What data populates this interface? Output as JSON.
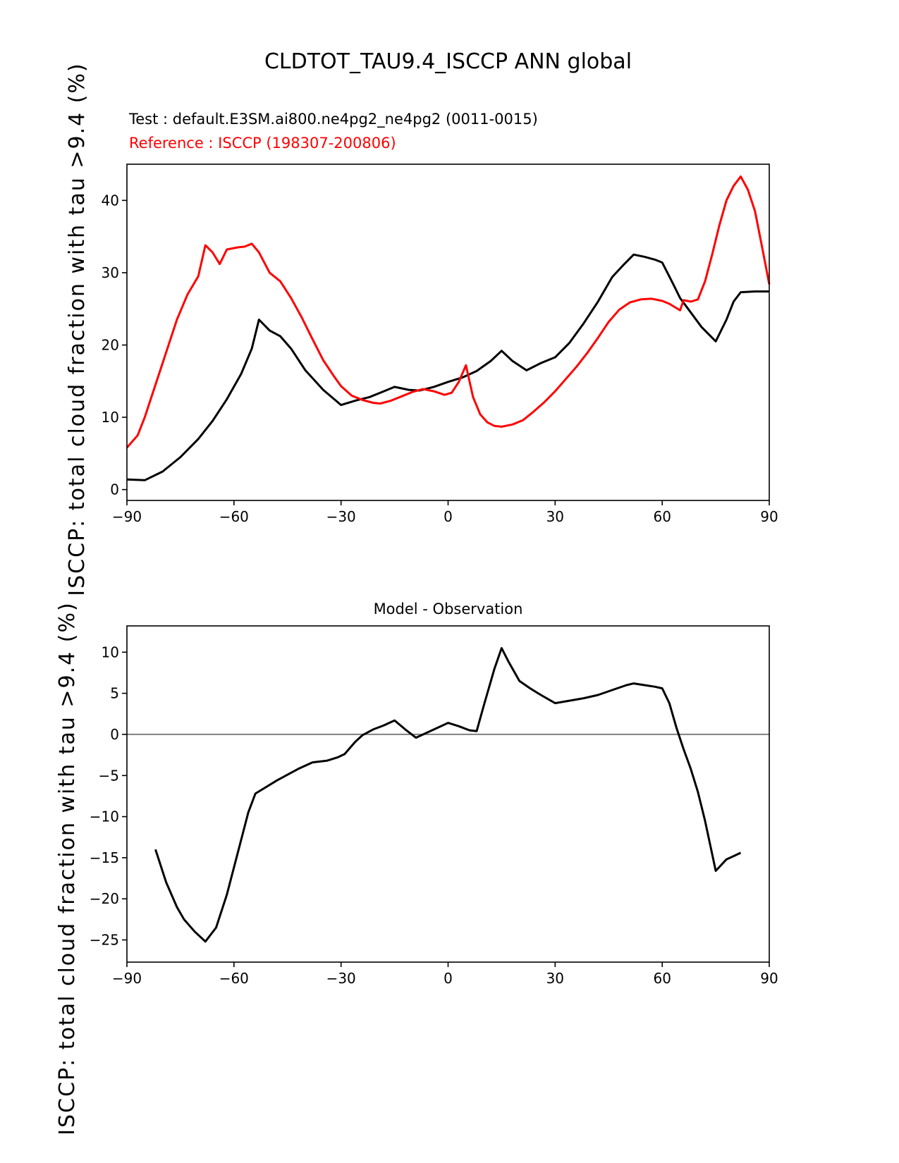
{
  "page": {
    "title": "CLDTOT_TAU9.4_ISCCP ANN global",
    "test_label": "Test : default.E3SM.ai800.ne4pg2_ne4pg2 (0011-0015)",
    "reference_label": "Reference : ISCCP (198307-200806)",
    "reference_color": "#ff0000",
    "test_color": "#000000",
    "ylabel": "ISCCP: total cloud fraction with tau >9.4 (%)",
    "diff_title": "Model - Observation"
  },
  "chart_data": [
    {
      "type": "line",
      "title": "CLDTOT_TAU9.4_ISCCP ANN global",
      "xlabel": "",
      "ylabel": "ISCCP: total cloud fraction with tau >9.4 (%)",
      "xlim": [
        -90,
        90
      ],
      "ylim": [
        -1.5,
        45
      ],
      "grid": false,
      "legend_position": "none",
      "xtick_values": [
        -90,
        -60,
        -30,
        0,
        30,
        60,
        90
      ],
      "xtick_labels": [
        "−90",
        "−60",
        "−30",
        "0",
        "30",
        "60",
        "90"
      ],
      "ytick_values": [
        0,
        10,
        20,
        30,
        40
      ],
      "ytick_labels": [
        "0",
        "10",
        "20",
        "30",
        "40"
      ],
      "zero_line": false,
      "series": [
        {
          "key": "test",
          "label": "Test : default.E3SM.ai800.ne4pg2_ne4pg2 (0011-0015)",
          "color": "#000000",
          "line_width": 3,
          "points": [
            [
              -90,
              1.4
            ],
            [
              -85,
              1.3
            ],
            [
              -80,
              2.5
            ],
            [
              -75,
              4.5
            ],
            [
              -70,
              7.0
            ],
            [
              -66,
              9.5
            ],
            [
              -62,
              12.5
            ],
            [
              -58,
              16.0
            ],
            [
              -55,
              19.5
            ],
            [
              -53,
              23.5
            ],
            [
              -50,
              22.0
            ],
            [
              -47,
              21.2
            ],
            [
              -44,
              19.5
            ],
            [
              -40,
              16.5
            ],
            [
              -35,
              13.8
            ],
            [
              -30,
              11.7
            ],
            [
              -26,
              12.3
            ],
            [
              -22,
              12.8
            ],
            [
              -18,
              13.6
            ],
            [
              -15,
              14.2
            ],
            [
              -11,
              13.8
            ],
            [
              -8,
              13.7
            ],
            [
              -4,
              14.2
            ],
            [
              0,
              14.9
            ],
            [
              4,
              15.5
            ],
            [
              8,
              16.4
            ],
            [
              12,
              17.8
            ],
            [
              15,
              19.2
            ],
            [
              18,
              17.8
            ],
            [
              22,
              16.5
            ],
            [
              26,
              17.5
            ],
            [
              30,
              18.3
            ],
            [
              34,
              20.3
            ],
            [
              38,
              23.0
            ],
            [
              42,
              26.0
            ],
            [
              46,
              29.4
            ],
            [
              49,
              31.0
            ],
            [
              52,
              32.5
            ],
            [
              55,
              32.2
            ],
            [
              58,
              31.8
            ],
            [
              60,
              31.4
            ],
            [
              63,
              28.5
            ],
            [
              65,
              26.5
            ],
            [
              68,
              24.5
            ],
            [
              71,
              22.5
            ],
            [
              75,
              20.5
            ],
            [
              78,
              23.5
            ],
            [
              80,
              26.0
            ],
            [
              82,
              27.3
            ],
            [
              86,
              27.4
            ],
            [
              90,
              27.4
            ]
          ]
        },
        {
          "key": "reference",
          "label": "Reference : ISCCP (198307-200806)",
          "color": "#ff0000",
          "line_width": 3,
          "points": [
            [
              -90,
              5.8
            ],
            [
              -87,
              7.5
            ],
            [
              -85,
              10.0
            ],
            [
              -82,
              14.5
            ],
            [
              -79,
              19.0
            ],
            [
              -76,
              23.5
            ],
            [
              -73,
              27.0
            ],
            [
              -70,
              29.5
            ],
            [
              -68,
              33.8
            ],
            [
              -66,
              32.8
            ],
            [
              -64,
              31.2
            ],
            [
              -62,
              33.2
            ],
            [
              -59,
              33.5
            ],
            [
              -57,
              33.6
            ],
            [
              -55,
              34.0
            ],
            [
              -53,
              32.8
            ],
            [
              -50,
              30.0
            ],
            [
              -47,
              28.8
            ],
            [
              -44,
              26.5
            ],
            [
              -41,
              23.8
            ],
            [
              -38,
              20.8
            ],
            [
              -35,
              17.9
            ],
            [
              -32,
              15.7
            ],
            [
              -30,
              14.3
            ],
            [
              -27,
              13.0
            ],
            [
              -24,
              12.4
            ],
            [
              -21,
              12.0
            ],
            [
              -19,
              11.9
            ],
            [
              -16,
              12.3
            ],
            [
              -13,
              12.9
            ],
            [
              -10,
              13.5
            ],
            [
              -7,
              13.9
            ],
            [
              -4,
              13.6
            ],
            [
              -1,
              13.1
            ],
            [
              1,
              13.4
            ],
            [
              3,
              14.9
            ],
            [
              5,
              17.2
            ],
            [
              7,
              12.8
            ],
            [
              9,
              10.4
            ],
            [
              11,
              9.3
            ],
            [
              13,
              8.8
            ],
            [
              15,
              8.7
            ],
            [
              18,
              9.0
            ],
            [
              21,
              9.6
            ],
            [
              24,
              10.8
            ],
            [
              27,
              12.1
            ],
            [
              30,
              13.6
            ],
            [
              33,
              15.3
            ],
            [
              36,
              17.0
            ],
            [
              39,
              18.9
            ],
            [
              42,
              21.0
            ],
            [
              45,
              23.2
            ],
            [
              48,
              24.9
            ],
            [
              51,
              25.9
            ],
            [
              54,
              26.3
            ],
            [
              57,
              26.4
            ],
            [
              60,
              26.1
            ],
            [
              62,
              25.7
            ],
            [
              64,
              25.1
            ],
            [
              65,
              24.8
            ],
            [
              66,
              26.2
            ],
            [
              68,
              26.0
            ],
            [
              70,
              26.3
            ],
            [
              72,
              28.8
            ],
            [
              74,
              32.5
            ],
            [
              76,
              36.5
            ],
            [
              78,
              40.0
            ],
            [
              80,
              42.0
            ],
            [
              82,
              43.3
            ],
            [
              84,
              41.5
            ],
            [
              86,
              38.5
            ],
            [
              88,
              33.5
            ],
            [
              90,
              28.4
            ]
          ]
        }
      ]
    },
    {
      "type": "line",
      "title": "Model - Observation",
      "xlabel": "",
      "ylabel": "ISCCP: total cloud fraction with tau >9.4 (%)",
      "xlim": [
        -90,
        90
      ],
      "ylim": [
        -27.7,
        13.2
      ],
      "grid": false,
      "legend_position": "none",
      "xtick_values": [
        -90,
        -60,
        -30,
        0,
        30,
        60,
        90
      ],
      "xtick_labels": [
        "−90",
        "−60",
        "−30",
        "0",
        "30",
        "60",
        "90"
      ],
      "ytick_values": [
        10,
        5,
        0,
        -5,
        -10,
        -15,
        -20,
        -25
      ],
      "ytick_labels": [
        "10",
        "5",
        "0",
        "−5",
        "−10",
        "−15",
        "−20",
        "−25"
      ],
      "zero_line": true,
      "zero_line_color": "#808080",
      "series": [
        {
          "key": "difference",
          "label": "Model - Observation",
          "color": "#000000",
          "line_width": 3,
          "points": [
            [
              -82,
              -14.0
            ],
            [
              -79,
              -18.0
            ],
            [
              -76,
              -21.0
            ],
            [
              -74,
              -22.5
            ],
            [
              -71,
              -24.0
            ],
            [
              -68,
              -25.2
            ],
            [
              -65,
              -23.5
            ],
            [
              -62,
              -19.5
            ],
            [
              -59,
              -14.5
            ],
            [
              -56,
              -9.5
            ],
            [
              -54,
              -7.2
            ],
            [
              -51,
              -6.4
            ],
            [
              -48,
              -5.6
            ],
            [
              -45,
              -4.9
            ],
            [
              -42,
              -4.2
            ],
            [
              -38,
              -3.4
            ],
            [
              -34,
              -3.2
            ],
            [
              -31,
              -2.8
            ],
            [
              -29,
              -2.4
            ],
            [
              -26,
              -0.9
            ],
            [
              -24,
              -0.1
            ],
            [
              -21,
              0.6
            ],
            [
              -18,
              1.1
            ],
            [
              -15,
              1.7
            ],
            [
              -12,
              0.6
            ],
            [
              -9,
              -0.4
            ],
            [
              -6,
              0.2
            ],
            [
              -3,
              0.8
            ],
            [
              0,
              1.4
            ],
            [
              3,
              1.0
            ],
            [
              6,
              0.5
            ],
            [
              8,
              0.4
            ],
            [
              10,
              3.5
            ],
            [
              13,
              8.0
            ],
            [
              15,
              10.5
            ],
            [
              17,
              8.8
            ],
            [
              20,
              6.5
            ],
            [
              23,
              5.6
            ],
            [
              26,
              4.8
            ],
            [
              30,
              3.8
            ],
            [
              34,
              4.1
            ],
            [
              38,
              4.4
            ],
            [
              42,
              4.8
            ],
            [
              46,
              5.4
            ],
            [
              50,
              6.0
            ],
            [
              52,
              6.2
            ],
            [
              55,
              6.0
            ],
            [
              58,
              5.8
            ],
            [
              60,
              5.6
            ],
            [
              62,
              3.8
            ],
            [
              64,
              0.8
            ],
            [
              66,
              -1.8
            ],
            [
              68,
              -4.2
            ],
            [
              70,
              -7.0
            ],
            [
              72,
              -10.5
            ],
            [
              75,
              -16.6
            ],
            [
              78,
              -15.2
            ],
            [
              80,
              -14.8
            ],
            [
              82,
              -14.4
            ]
          ]
        }
      ]
    }
  ]
}
